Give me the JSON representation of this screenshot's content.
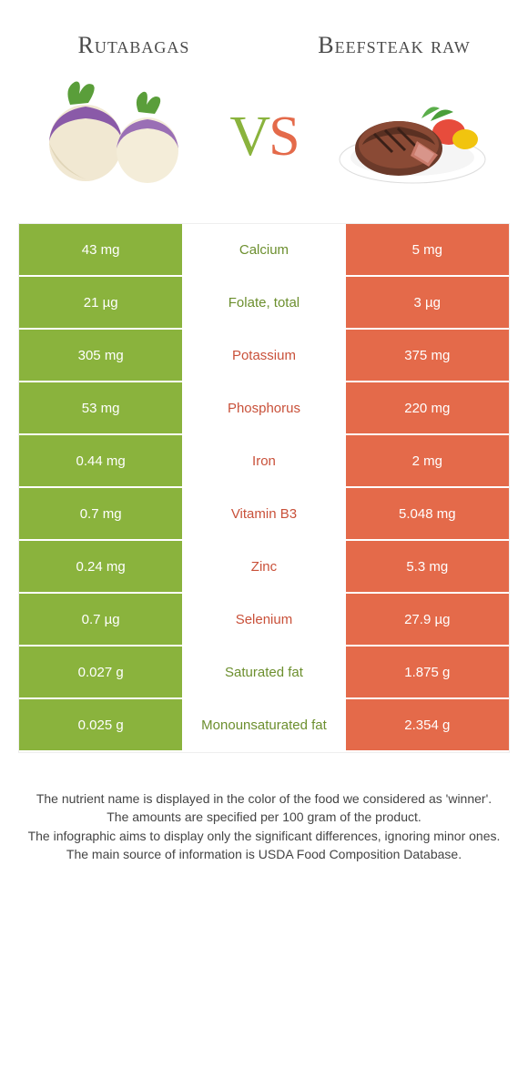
{
  "colors": {
    "left": "#8ab33d",
    "right": "#e46a4a",
    "left_dark_text": "#6c8f2e",
    "right_dark_text": "#c9513a"
  },
  "header": {
    "left_title": "Rutabagas",
    "right_title": "Beefsteak raw"
  },
  "vs": {
    "v": "V",
    "s": "S"
  },
  "rows": [
    {
      "left": "43 mg",
      "label": "Calcium",
      "right": "5 mg",
      "winner": "left"
    },
    {
      "left": "21 µg",
      "label": "Folate, total",
      "right": "3 µg",
      "winner": "left"
    },
    {
      "left": "305 mg",
      "label": "Potassium",
      "right": "375 mg",
      "winner": "right"
    },
    {
      "left": "53 mg",
      "label": "Phosphorus",
      "right": "220 mg",
      "winner": "right"
    },
    {
      "left": "0.44 mg",
      "label": "Iron",
      "right": "2 mg",
      "winner": "right"
    },
    {
      "left": "0.7 mg",
      "label": "Vitamin B3",
      "right": "5.048 mg",
      "winner": "right"
    },
    {
      "left": "0.24 mg",
      "label": "Zinc",
      "right": "5.3 mg",
      "winner": "right"
    },
    {
      "left": "0.7 µg",
      "label": "Selenium",
      "right": "27.9 µg",
      "winner": "right"
    },
    {
      "left": "0.027 g",
      "label": "Saturated fat",
      "right": "1.875 g",
      "winner": "left"
    },
    {
      "left": "0.025 g",
      "label": "Monounsaturated fat",
      "right": "2.354 g",
      "winner": "left"
    }
  ],
  "footer": {
    "line1": "The nutrient name is displayed in the color of the food we considered as 'winner'.",
    "line2": "The amounts are specified per 100 gram of the product.",
    "line3": "The infographic aims to display only the significant differences, ignoring minor ones.",
    "line4": "The main source of information is USDA Food Composition Database."
  }
}
